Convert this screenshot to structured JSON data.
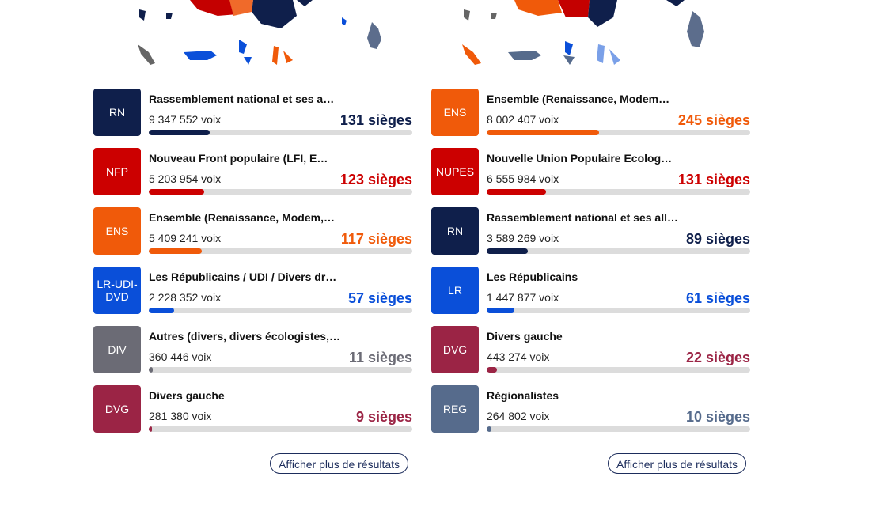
{
  "left": {
    "more_label": "Afficher plus de résultats",
    "parties": [
      {
        "abbr": "RN",
        "name": "Rassemblement national et ses a…",
        "votes": "9 347 552 voix",
        "seats": "131 sièges",
        "color": "#0f1f4b",
        "share": 0.23
      },
      {
        "abbr": "NFP",
        "name": "Nouveau Front populaire (LFI, E…",
        "votes": "5 203 954 voix",
        "seats": "123 sièges",
        "color": "#cc0000",
        "share": 0.21
      },
      {
        "abbr": "ENS",
        "name": "Ensemble (Renaissance, Modem,…",
        "votes": "5 409 241 voix",
        "seats": "117 sièges",
        "color": "#f05a0a",
        "share": 0.2
      },
      {
        "abbr": "LR-UDI-DVD",
        "name": "Les Républicains / UDI / Divers dr…",
        "votes": "2 228 352 voix",
        "seats": "57 sièges",
        "color": "#0a4fd9",
        "share": 0.095
      },
      {
        "abbr": "DIV",
        "name": "Autres (divers, divers écologistes,…",
        "votes": "360 446 voix",
        "seats": "11 sièges",
        "color": "#6b6b75",
        "share": 0.015
      },
      {
        "abbr": "DVG",
        "name": "Divers gauche",
        "votes": "281 380 voix",
        "seats": "9 sièges",
        "color": "#9b2445",
        "share": 0.012
      }
    ]
  },
  "right": {
    "more_label": "Afficher plus de résultats",
    "parties": [
      {
        "abbr": "ENS",
        "name": "Ensemble (Renaissance, Modem…",
        "votes": "8 002 407 voix",
        "seats": "245 sièges",
        "color": "#f05a0a",
        "share": 0.425
      },
      {
        "abbr": "NUPES",
        "name": "Nouvelle Union Populaire Ecolog…",
        "votes": "6 555 984 voix",
        "seats": "131 sièges",
        "color": "#cc0000",
        "share": 0.225
      },
      {
        "abbr": "RN",
        "name": "Rassemblement national et ses all…",
        "votes": "3 589 269 voix",
        "seats": "89 sièges",
        "color": "#0f1f4b",
        "share": 0.155
      },
      {
        "abbr": "LR",
        "name": "Les Républicains",
        "votes": "1 447 877 voix",
        "seats": "61 sièges",
        "color": "#0a4fd9",
        "share": 0.105
      },
      {
        "abbr": "DVG",
        "name": "Divers gauche",
        "votes": "443 274 voix",
        "seats": "22 sièges",
        "color": "#9b2445",
        "share": 0.038
      },
      {
        "abbr": "REG",
        "name": "Régionalistes",
        "votes": "264 802 voix",
        "seats": "10 sièges",
        "color": "#566b8c",
        "share": 0.018
      }
    ]
  }
}
